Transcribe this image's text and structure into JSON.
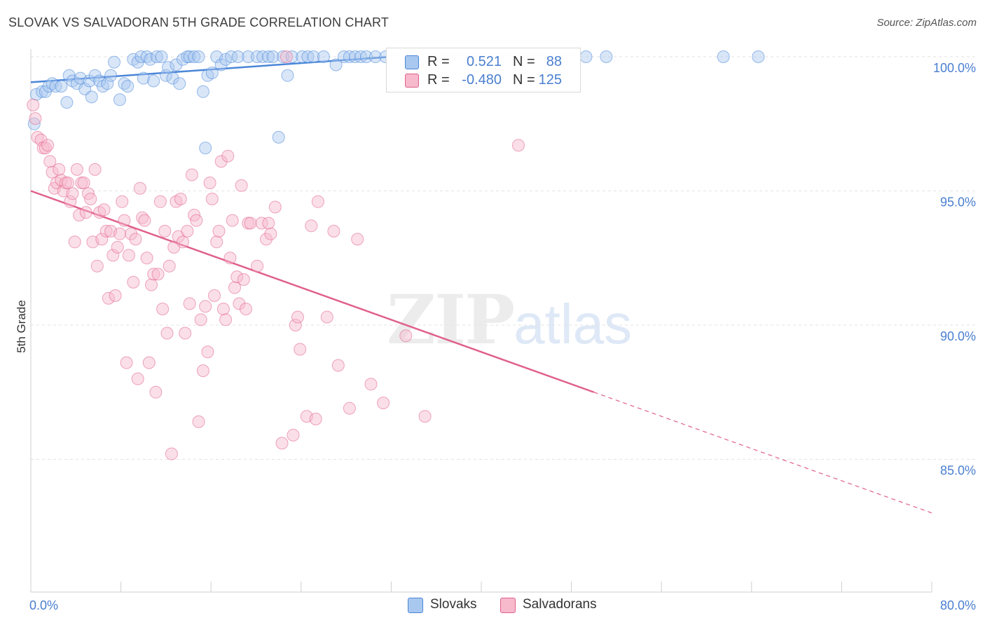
{
  "header": {
    "title": "SLOVAK VS SALVADORAN 5TH GRADE CORRELATION CHART",
    "source": "Source: ZipAtlas.com"
  },
  "watermark": {
    "zip": "ZIP",
    "atlas": "atlas"
  },
  "legend": {
    "rows": [
      {
        "r_label": "R =",
        "r_value": "0.521",
        "n_label": "N =",
        "n_value": "88",
        "color": "#a9c8f0"
      },
      {
        "r_label": "R =",
        "r_value": "-0.480",
        "n_label": "N =",
        "n_value": "125",
        "color": "#f7b9cc"
      }
    ]
  },
  "bottom_legend": [
    {
      "label": "Slovaks",
      "color": "#a9c8f0"
    },
    {
      "label": "Salvadorans",
      "color": "#f7b9cc"
    }
  ],
  "chart_data": {
    "type": "scatter",
    "xlabel": "",
    "ylabel": "5th Grade",
    "xlim": [
      0,
      80
    ],
    "ylim": [
      80.5,
      100.7
    ],
    "x_tick_labels": [
      "0.0%",
      "80.0%"
    ],
    "y_ticks": [
      85,
      90,
      95,
      100
    ],
    "y_tick_labels": [
      "85.0%",
      "90.0%",
      "95.0%",
      "100.0%"
    ],
    "grid": true,
    "series": [
      {
        "name": "Slovaks",
        "color": "#4a86d8",
        "fill": "#a9c8f0",
        "trend": {
          "x0": 0,
          "y0": 99.05,
          "x1": 32,
          "y1": 100.0,
          "dashed_to": null
        },
        "points": [
          [
            0.3,
            97.5
          ],
          [
            0.5,
            98.6
          ],
          [
            1.0,
            98.7
          ],
          [
            1.3,
            98.7
          ],
          [
            1.6,
            98.9
          ],
          [
            1.9,
            99.0
          ],
          [
            2.2,
            98.9
          ],
          [
            2.7,
            98.9
          ],
          [
            3.2,
            98.3
          ],
          [
            3.4,
            99.3
          ],
          [
            3.7,
            99.1
          ],
          [
            4.1,
            99.0
          ],
          [
            4.4,
            99.2
          ],
          [
            4.8,
            98.8
          ],
          [
            5.2,
            99.1
          ],
          [
            5.4,
            98.5
          ],
          [
            5.7,
            99.3
          ],
          [
            6.1,
            99.1
          ],
          [
            6.4,
            98.9
          ],
          [
            6.8,
            99.0
          ],
          [
            7.1,
            99.3
          ],
          [
            7.4,
            99.8
          ],
          [
            7.9,
            98.4
          ],
          [
            8.3,
            99.0
          ],
          [
            8.6,
            98.9
          ],
          [
            9.1,
            99.9
          ],
          [
            9.5,
            99.8
          ],
          [
            9.8,
            100.0
          ],
          [
            10.0,
            99.2
          ],
          [
            10.3,
            100.0
          ],
          [
            10.6,
            99.9
          ],
          [
            10.9,
            99.1
          ],
          [
            11.2,
            100.0
          ],
          [
            11.6,
            100.0
          ],
          [
            12.0,
            99.3
          ],
          [
            12.2,
            99.6
          ],
          [
            12.6,
            99.2
          ],
          [
            12.9,
            99.7
          ],
          [
            13.2,
            99.0
          ],
          [
            13.5,
            99.9
          ],
          [
            13.9,
            100.0
          ],
          [
            14.1,
            100.0
          ],
          [
            14.5,
            100.0
          ],
          [
            14.9,
            100.0
          ],
          [
            15.3,
            98.7
          ],
          [
            15.5,
            96.6
          ],
          [
            15.7,
            99.3
          ],
          [
            16.1,
            99.4
          ],
          [
            16.5,
            100.0
          ],
          [
            16.9,
            99.7
          ],
          [
            17.3,
            99.9
          ],
          [
            17.8,
            100.0
          ],
          [
            18.4,
            100.0
          ],
          [
            19.3,
            100.0
          ],
          [
            20.1,
            100.0
          ],
          [
            20.6,
            100.0
          ],
          [
            21.1,
            100.0
          ],
          [
            21.5,
            100.0
          ],
          [
            22.0,
            97.0
          ],
          [
            22.4,
            100.0
          ],
          [
            22.8,
            99.3
          ],
          [
            23.2,
            100.0
          ],
          [
            24.1,
            100.0
          ],
          [
            24.6,
            100.0
          ],
          [
            25.1,
            100.0
          ],
          [
            26.0,
            100.0
          ],
          [
            27.1,
            99.7
          ],
          [
            27.8,
            100.0
          ],
          [
            28.3,
            100.0
          ],
          [
            28.8,
            100.0
          ],
          [
            29.3,
            100.0
          ],
          [
            29.8,
            100.0
          ],
          [
            30.6,
            100.0
          ],
          [
            31.5,
            100.0
          ],
          [
            32.2,
            100.0
          ],
          [
            33.1,
            100.0
          ],
          [
            34.5,
            100.0
          ],
          [
            36.0,
            100.0
          ],
          [
            37.5,
            100.0
          ],
          [
            39.3,
            100.0
          ],
          [
            41.0,
            100.0
          ],
          [
            42.6,
            100.0
          ],
          [
            44.2,
            100.0
          ],
          [
            47.7,
            100.0
          ],
          [
            49.3,
            100.0
          ],
          [
            51.1,
            100.0
          ],
          [
            61.5,
            100.0
          ],
          [
            64.6,
            100.0
          ]
        ]
      },
      {
        "name": "Salvadorans",
        "color": "#e0608a",
        "fill": "#f7b9cc",
        "trend": {
          "x0": 0,
          "y0": 95.0,
          "x1": 50,
          "y1": 87.5,
          "dashed_to": 80
        },
        "points": [
          [
            0.2,
            98.2
          ],
          [
            0.4,
            97.7
          ],
          [
            0.6,
            97.0
          ],
          [
            0.9,
            96.9
          ],
          [
            1.1,
            96.6
          ],
          [
            1.3,
            96.6
          ],
          [
            1.5,
            96.7
          ],
          [
            1.7,
            96.1
          ],
          [
            1.9,
            95.7
          ],
          [
            2.1,
            95.1
          ],
          [
            2.3,
            95.3
          ],
          [
            2.5,
            95.8
          ],
          [
            2.7,
            95.4
          ],
          [
            2.9,
            95.0
          ],
          [
            3.1,
            95.3
          ],
          [
            3.3,
            95.3
          ],
          [
            3.5,
            94.6
          ],
          [
            3.7,
            94.9
          ],
          [
            3.9,
            93.1
          ],
          [
            4.1,
            95.8
          ],
          [
            4.3,
            94.1
          ],
          [
            4.5,
            95.3
          ],
          [
            4.7,
            95.3
          ],
          [
            4.9,
            94.2
          ],
          [
            5.1,
            94.9
          ],
          [
            5.3,
            94.7
          ],
          [
            5.5,
            93.1
          ],
          [
            5.7,
            95.8
          ],
          [
            5.9,
            92.2
          ],
          [
            6.1,
            94.2
          ],
          [
            6.3,
            93.2
          ],
          [
            6.5,
            94.3
          ],
          [
            6.7,
            93.5
          ],
          [
            6.9,
            91.0
          ],
          [
            7.1,
            93.5
          ],
          [
            7.3,
            92.6
          ],
          [
            7.5,
            91.1
          ],
          [
            7.7,
            92.9
          ],
          [
            7.9,
            93.4
          ],
          [
            8.1,
            94.6
          ],
          [
            8.3,
            93.9
          ],
          [
            8.5,
            88.6
          ],
          [
            8.7,
            92.6
          ],
          [
            8.9,
            93.4
          ],
          [
            9.1,
            91.6
          ],
          [
            9.3,
            93.2
          ],
          [
            9.5,
            88.0
          ],
          [
            9.7,
            95.1
          ],
          [
            9.9,
            94.0
          ],
          [
            10.1,
            93.9
          ],
          [
            10.3,
            92.5
          ],
          [
            10.5,
            88.6
          ],
          [
            10.7,
            91.5
          ],
          [
            10.9,
            91.9
          ],
          [
            11.1,
            87.5
          ],
          [
            11.3,
            91.9
          ],
          [
            11.5,
            94.6
          ],
          [
            11.7,
            90.6
          ],
          [
            11.9,
            93.5
          ],
          [
            12.1,
            89.7
          ],
          [
            12.3,
            92.2
          ],
          [
            12.5,
            85.2
          ],
          [
            12.7,
            92.9
          ],
          [
            12.9,
            94.6
          ],
          [
            13.1,
            93.3
          ],
          [
            13.3,
            94.7
          ],
          [
            13.5,
            93.1
          ],
          [
            13.7,
            89.7
          ],
          [
            13.9,
            93.5
          ],
          [
            14.1,
            90.8
          ],
          [
            14.3,
            95.6
          ],
          [
            14.5,
            94.1
          ],
          [
            14.7,
            93.9
          ],
          [
            14.9,
            86.4
          ],
          [
            15.1,
            90.2
          ],
          [
            15.3,
            88.3
          ],
          [
            15.5,
            90.7
          ],
          [
            15.7,
            89.0
          ],
          [
            15.9,
            95.3
          ],
          [
            16.1,
            94.7
          ],
          [
            16.3,
            91.1
          ],
          [
            16.5,
            93.1
          ],
          [
            16.7,
            93.5
          ],
          [
            16.9,
            96.1
          ],
          [
            17.1,
            90.6
          ],
          [
            17.3,
            90.2
          ],
          [
            17.5,
            96.3
          ],
          [
            17.7,
            92.5
          ],
          [
            17.9,
            93.9
          ],
          [
            18.1,
            91.4
          ],
          [
            18.3,
            91.8
          ],
          [
            18.5,
            90.8
          ],
          [
            18.7,
            95.2
          ],
          [
            18.9,
            91.7
          ],
          [
            19.1,
            90.6
          ],
          [
            19.3,
            93.8
          ],
          [
            19.5,
            93.8
          ],
          [
            20.1,
            92.2
          ],
          [
            20.5,
            93.8
          ],
          [
            20.9,
            93.2
          ],
          [
            21.1,
            93.8
          ],
          [
            21.3,
            93.4
          ],
          [
            21.7,
            94.4
          ],
          [
            22.3,
            85.6
          ],
          [
            22.7,
            100.0
          ],
          [
            23.3,
            85.9
          ],
          [
            23.5,
            90.0
          ],
          [
            23.7,
            90.3
          ],
          [
            23.9,
            89.1
          ],
          [
            24.5,
            86.6
          ],
          [
            24.9,
            93.7
          ],
          [
            25.3,
            86.5
          ],
          [
            25.5,
            94.6
          ],
          [
            26.3,
            90.3
          ],
          [
            26.9,
            93.5
          ],
          [
            27.3,
            88.5
          ],
          [
            28.3,
            86.9
          ],
          [
            29.0,
            93.2
          ],
          [
            30.2,
            87.8
          ],
          [
            31.3,
            87.1
          ],
          [
            33.3,
            89.6
          ],
          [
            35.0,
            86.6
          ],
          [
            43.3,
            96.7
          ]
        ]
      }
    ]
  }
}
